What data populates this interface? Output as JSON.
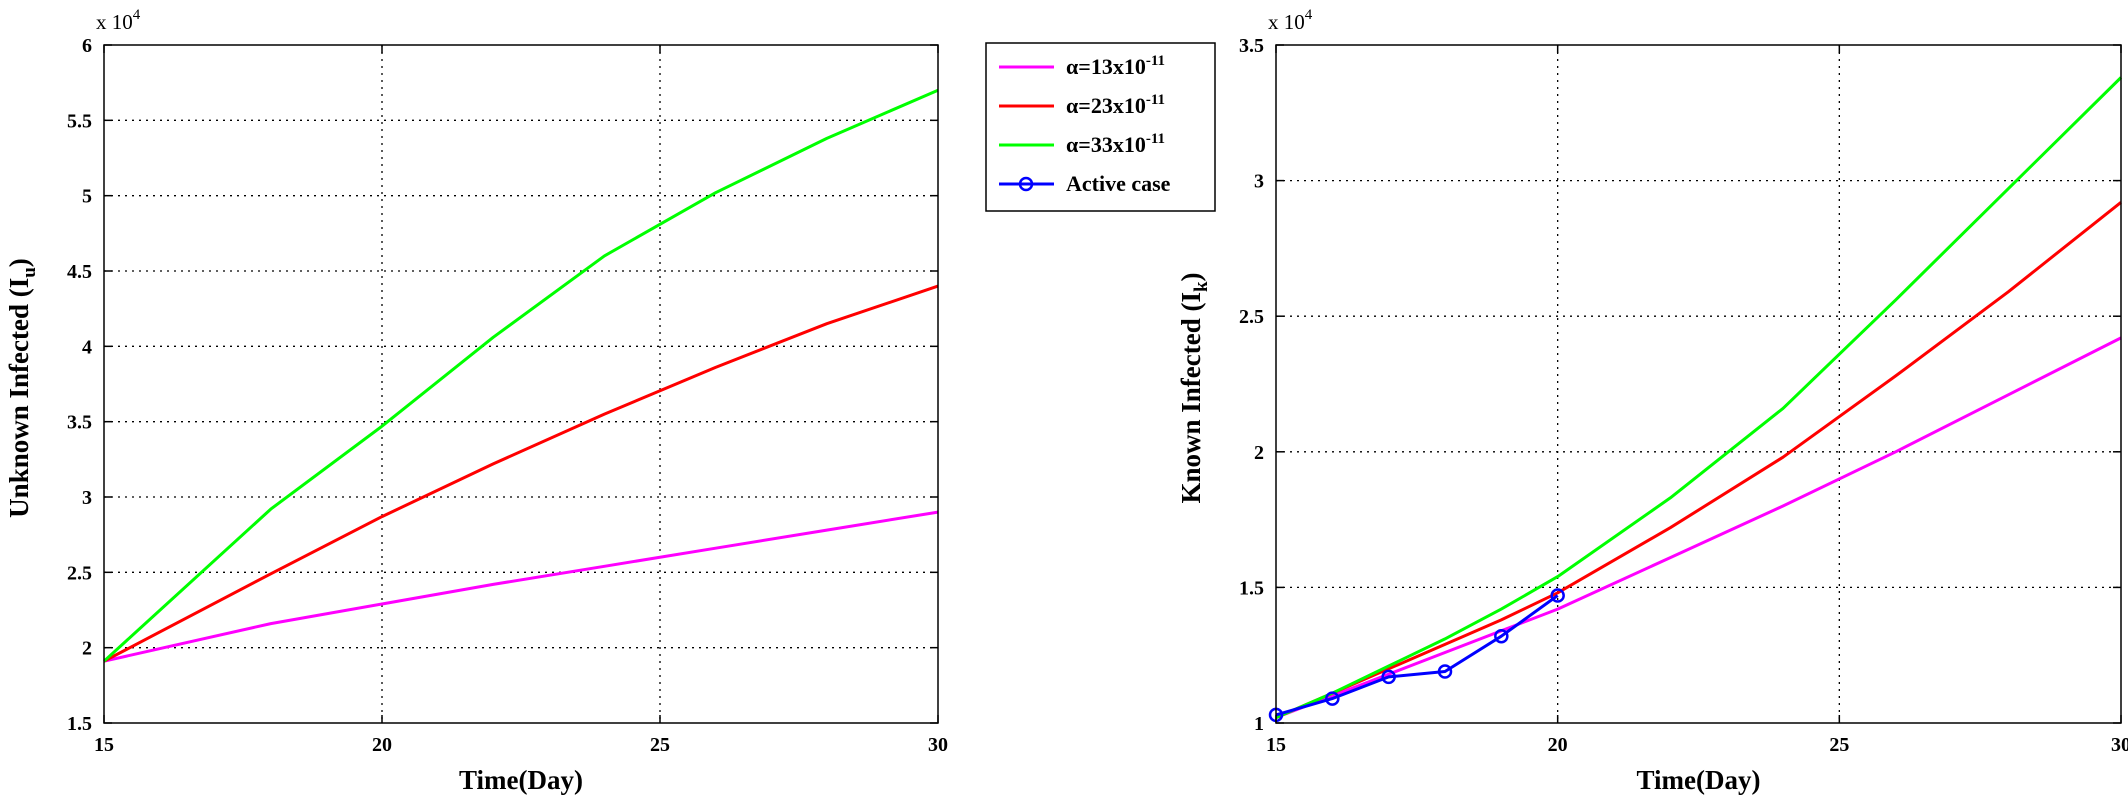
{
  "chart_data": [
    {
      "type": "line",
      "title": "",
      "xlabel": "Time(Day)",
      "ylabel_main": "Unknown Infected (I",
      "ylabel_sub": "u",
      "ylabel_close": ")",
      "y_exponent_base": "x 10",
      "y_exponent_power": "4",
      "xlim": [
        15,
        30
      ],
      "ylim": [
        1.5,
        6
      ],
      "x_ticks": [
        15,
        20,
        25,
        30
      ],
      "y_ticks": [
        1.5,
        2,
        2.5,
        3,
        3.5,
        4,
        4.5,
        5,
        5.5,
        6
      ],
      "grid": true,
      "series": [
        {
          "name": "α=13x10-11",
          "color": "#ff00ff",
          "x": [
            15,
            18,
            20,
            22,
            24,
            26,
            28,
            30
          ],
          "values": [
            1.91,
            2.16,
            2.29,
            2.42,
            2.54,
            2.66,
            2.78,
            2.9
          ]
        },
        {
          "name": "α=23x10-11",
          "color": "#ff0000",
          "x": [
            15,
            18,
            20,
            22,
            24,
            26,
            28,
            30
          ],
          "values": [
            1.91,
            2.49,
            2.87,
            3.22,
            3.55,
            3.86,
            4.15,
            4.4
          ]
        },
        {
          "name": "α=33x10-11",
          "color": "#00ff00",
          "x": [
            15,
            18,
            20,
            22,
            24,
            26,
            28,
            30
          ],
          "values": [
            1.91,
            2.92,
            3.47,
            4.06,
            4.6,
            5.02,
            5.38,
            5.7
          ]
        }
      ]
    },
    {
      "type": "line",
      "title": "",
      "xlabel": "Time(Day)",
      "ylabel_main": "Known Infected (I",
      "ylabel_sub": "k",
      "ylabel_close": ")",
      "y_exponent_base": "x 10",
      "y_exponent_power": "4",
      "xlim": [
        15,
        30
      ],
      "ylim": [
        1,
        3.5
      ],
      "x_ticks": [
        15,
        20,
        25,
        30
      ],
      "y_ticks": [
        1,
        1.5,
        2,
        2.5,
        3,
        3.5
      ],
      "grid": true,
      "series": [
        {
          "name": "α=13x10-11",
          "color": "#ff00ff",
          "x": [
            15,
            16,
            17,
            18,
            19,
            20,
            22,
            24,
            26,
            28,
            30
          ],
          "values": [
            1.02,
            1.1,
            1.18,
            1.26,
            1.34,
            1.42,
            1.61,
            1.8,
            2.0,
            2.21,
            2.42
          ]
        },
        {
          "name": "α=23x10-11",
          "color": "#ff0000",
          "x": [
            15,
            16,
            17,
            18,
            19,
            20,
            22,
            24,
            26,
            28,
            30
          ],
          "values": [
            1.02,
            1.11,
            1.2,
            1.29,
            1.38,
            1.48,
            1.72,
            1.98,
            2.28,
            2.59,
            2.92
          ]
        },
        {
          "name": "α=33x10-11",
          "color": "#00ff00",
          "x": [
            15,
            16,
            17,
            18,
            19,
            20,
            22,
            24,
            26,
            28,
            30
          ],
          "values": [
            1.02,
            1.11,
            1.21,
            1.31,
            1.42,
            1.54,
            1.83,
            2.16,
            2.56,
            2.97,
            3.38
          ]
        },
        {
          "name": "Active case",
          "color": "#0000ff",
          "marker": "circle",
          "x": [
            15,
            16,
            17,
            18,
            19,
            20
          ],
          "values": [
            1.03,
            1.09,
            1.17,
            1.19,
            1.32,
            1.47
          ]
        }
      ]
    }
  ],
  "legend": {
    "placement": "between-charts",
    "items": [
      {
        "prefix": "α=13x10",
        "sup": "-11",
        "color": "#ff00ff",
        "marker": false
      },
      {
        "prefix": "α=23x10",
        "sup": "-11",
        "color": "#ff0000",
        "marker": false
      },
      {
        "prefix": "α=33x10",
        "sup": "-11",
        "color": "#00ff00",
        "marker": false
      },
      {
        "prefix": "Active case",
        "sup": "",
        "color": "#0000ff",
        "marker": true
      }
    ]
  }
}
